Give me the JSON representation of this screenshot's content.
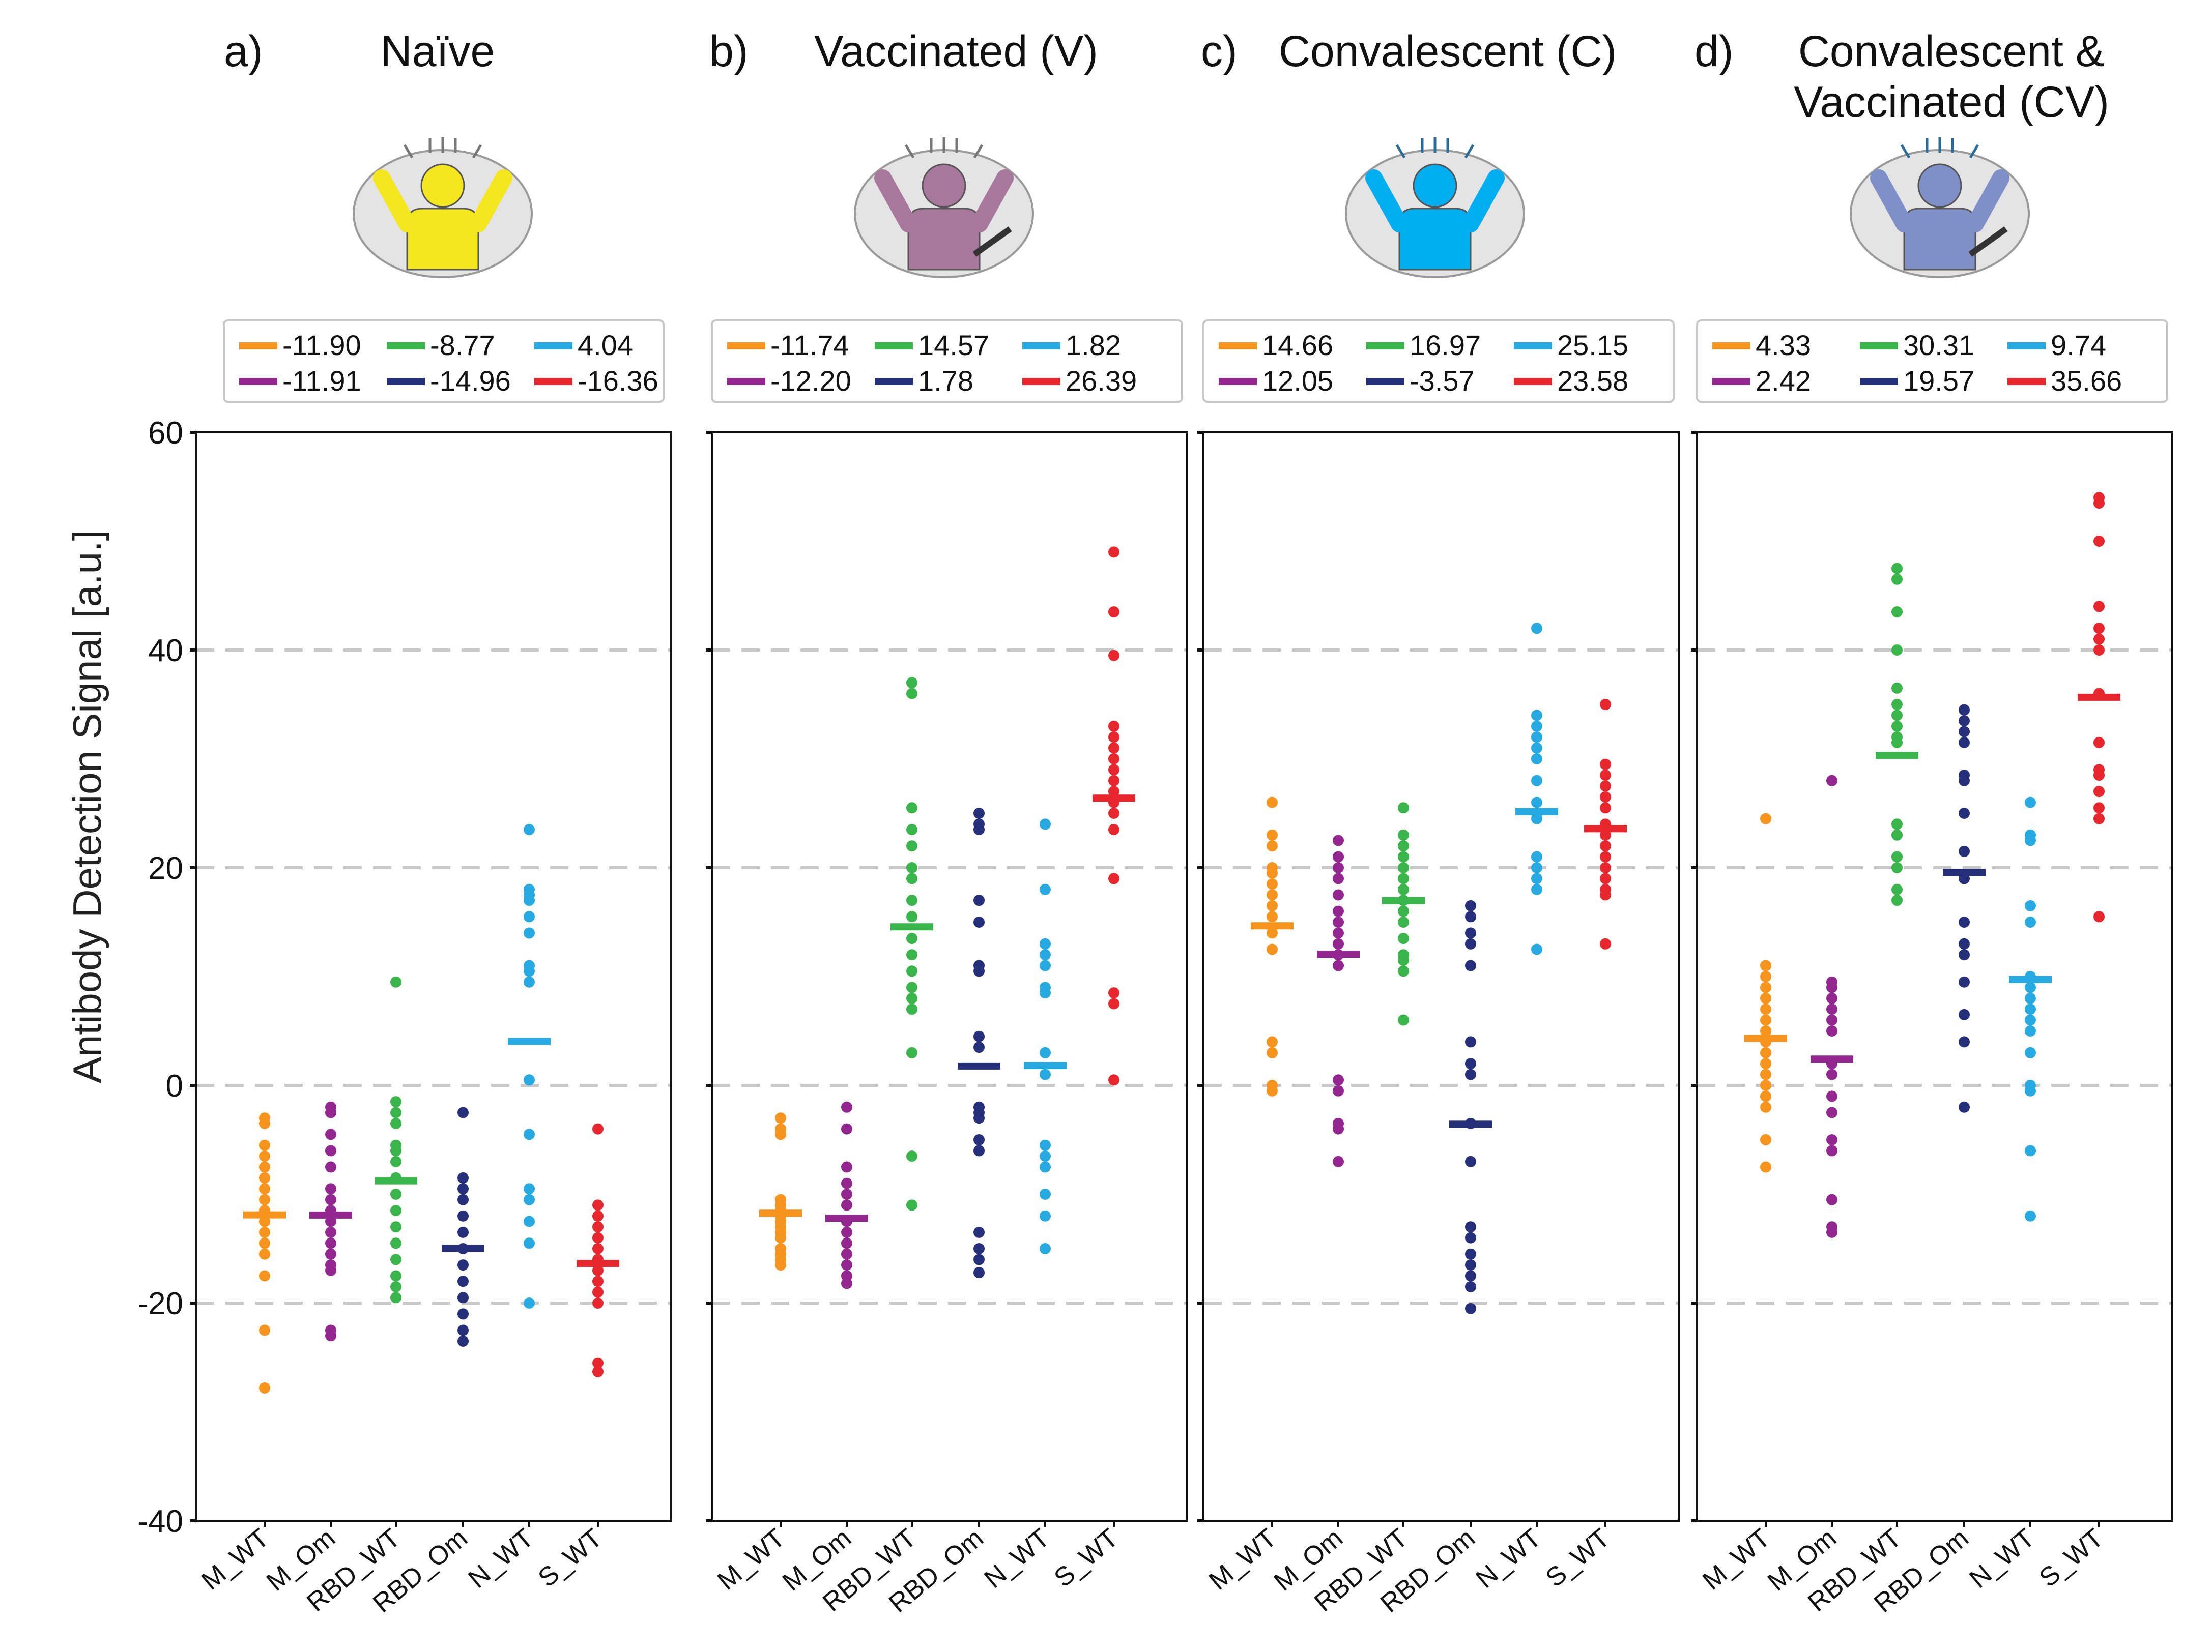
{
  "figure": {
    "ylabel": "Antibody Detection Signal [a.u.]"
  },
  "series_colors": {
    "M_WT": "#f7941d",
    "M_Om": "#92278f",
    "RBD_WT": "#39b54a",
    "RBD_Om": "#262f7a",
    "N_WT": "#27aae1",
    "S_WT": "#e8262d"
  },
  "icons": [
    {
      "panel": "a",
      "name": "raised-arms-person-icon",
      "body_color": "#f5e71e"
    },
    {
      "panel": "b",
      "name": "vaccinated-person-icon",
      "body_color": "#a8779c"
    },
    {
      "panel": "c",
      "name": "sick-person-icon",
      "body_color": "#00aeef"
    },
    {
      "panel": "d",
      "name": "sick-vaccinated-person-icon",
      "body_color": "#7f90c8"
    }
  ],
  "chart_data": [
    {
      "panel_letter": "a)",
      "title_lines": [
        "Naïve"
      ],
      "type": "scatter",
      "categories": [
        "M_WT",
        "M_Om",
        "RBD_WT",
        "RBD_Om",
        "N_WT",
        "S_WT"
      ],
      "ylim": [
        -40,
        60
      ],
      "yticks": [
        -40,
        -20,
        0,
        20,
        40,
        60
      ],
      "grid": "dashed at -20, 0, 20, 40",
      "legend": {
        "placement": "top",
        "labels": [
          "-11.90",
          "-8.77",
          "4.04",
          "-11.91",
          "-14.96",
          "-16.36"
        ]
      },
      "means": [
        -11.9,
        -11.91,
        -8.77,
        -14.96,
        4.04,
        -16.36
      ],
      "points": [
        [
          -3,
          -3.5,
          -5.5,
          -6.5,
          -7.5,
          -8.5,
          -9.5,
          -10.5,
          -11.5,
          -12.5,
          -13.5,
          -14.5,
          -15.5,
          -17.5,
          -22.5,
          -27.8
        ],
        [
          -2,
          -2.5,
          -4.5,
          -6,
          -7.5,
          -9.5,
          -10.5,
          -11.5,
          -12.5,
          -13.5,
          -14.5,
          -15.5,
          -16.5,
          -17,
          -22.5,
          -23
        ],
        [
          9.5,
          -1.5,
          -2.5,
          -3.5,
          -5.5,
          -6,
          -7,
          -8.5,
          -10,
          -11.5,
          -13,
          -14.5,
          -16,
          -17.5,
          -18.5,
          -19.5
        ],
        [
          -2.5,
          -8.5,
          -9.5,
          -10.5,
          -12,
          -13.5,
          -15,
          -16.5,
          -18,
          -19.5,
          -21,
          -22.5,
          -23.5
        ],
        [
          23.5,
          18,
          17.5,
          17,
          15.5,
          14,
          11,
          10.5,
          9.5,
          0.5,
          -4.5,
          -9.5,
          -10.5,
          -12.5,
          -14.5,
          -20
        ],
        [
          -4,
          -11,
          -12,
          -13,
          -14,
          -15,
          -16,
          -17,
          -18,
          -19,
          -20,
          -25.5,
          -26.3
        ]
      ]
    },
    {
      "panel_letter": "b)",
      "title_lines": [
        "Vaccinated (V)"
      ],
      "type": "scatter",
      "categories": [
        "M_WT",
        "M_Om",
        "RBD_WT",
        "RBD_Om",
        "N_WT",
        "S_WT"
      ],
      "ylim": [
        -40,
        60
      ],
      "yticks": [
        -40,
        -20,
        0,
        20,
        40,
        60
      ],
      "grid": "dashed at -20, 0, 20, 40",
      "legend": {
        "placement": "top",
        "labels": [
          "-11.74",
          "14.57",
          "1.82",
          "-12.20",
          "1.78",
          "26.39"
        ]
      },
      "means": [
        -11.74,
        -12.2,
        14.57,
        1.78,
        1.82,
        26.39
      ],
      "points": [
        [
          -3,
          -4,
          -4.5,
          -10.5,
          -11,
          -11.5,
          -12,
          -12.5,
          -13,
          -13.5,
          -14,
          -15,
          -15.5,
          -16,
          -16.5
        ],
        [
          -2,
          -4,
          -7.5,
          -9,
          -10,
          -11,
          -12.5,
          -13.5,
          -14.5,
          -15.5,
          -16.5,
          -17.5,
          -18.2
        ],
        [
          37,
          36,
          25.5,
          23.5,
          22,
          20,
          19,
          17,
          15.5,
          13.5,
          12,
          10.5,
          9,
          8,
          7,
          3,
          -6.5,
          -11
        ],
        [
          25,
          24,
          23.5,
          17,
          15,
          11,
          10.5,
          4.5,
          3.5,
          -2,
          -2.5,
          -3,
          -5,
          -6,
          -13.5,
          -15,
          -16,
          -17.2
        ],
        [
          24,
          18,
          13,
          12,
          11,
          9,
          8.5,
          3,
          1,
          -5.5,
          -6.5,
          -7.5,
          -10,
          -12,
          -15
        ],
        [
          49,
          43.5,
          39.5,
          33,
          32,
          31,
          30,
          29,
          28,
          27,
          26,
          25,
          23.5,
          19,
          8.5,
          7.5,
          0.5
        ]
      ]
    },
    {
      "panel_letter": "c)",
      "title_lines": [
        "Convalescent (C)"
      ],
      "type": "scatter",
      "categories": [
        "M_WT",
        "M_Om",
        "RBD_WT",
        "RBD_Om",
        "N_WT",
        "S_WT"
      ],
      "ylim": [
        -40,
        60
      ],
      "yticks": [
        -40,
        -20,
        0,
        20,
        40,
        60
      ],
      "grid": "dashed at -20, 0, 20, 40",
      "legend": {
        "placement": "top",
        "labels": [
          "14.66",
          "16.97",
          "25.15",
          "12.05",
          "-3.57",
          "23.58"
        ]
      },
      "means": [
        14.66,
        12.05,
        16.97,
        -3.57,
        25.15,
        23.58
      ],
      "points": [
        [
          26,
          23,
          22,
          20,
          19.5,
          18.5,
          17.5,
          16.5,
          15.5,
          14,
          12.5,
          4,
          3,
          0,
          -0.5
        ],
        [
          22.5,
          21,
          20,
          19,
          17.5,
          16,
          15,
          14,
          13,
          12,
          11,
          0.5,
          -0.5,
          -3.5,
          -4,
          -7
        ],
        [
          25.5,
          23,
          22,
          21,
          20,
          19,
          18,
          17,
          16,
          15,
          13.5,
          12,
          11.5,
          10.5,
          6
        ],
        [
          16.5,
          15.5,
          14,
          13,
          11,
          4,
          2,
          1,
          -3.5,
          -7,
          -13,
          -14,
          -15.5,
          -16.5,
          -17.5,
          -18.5,
          -20.5
        ],
        [
          42,
          34,
          33,
          32,
          31,
          30,
          28,
          26,
          25,
          24.5,
          21,
          20,
          19,
          18,
          12.5
        ],
        [
          35,
          29.5,
          28.5,
          27.5,
          26.5,
          25.5,
          24,
          23,
          22,
          21,
          20,
          19,
          18,
          17.5,
          13
        ]
      ]
    },
    {
      "panel_letter": "d)",
      "title_lines": [
        "Convalescent &",
        "Vaccinated (CV)"
      ],
      "type": "scatter",
      "categories": [
        "M_WT",
        "M_Om",
        "RBD_WT",
        "RBD_Om",
        "N_WT",
        "S_WT"
      ],
      "ylim": [
        -40,
        60
      ],
      "yticks": [
        -40,
        -20,
        0,
        20,
        40,
        60
      ],
      "grid": "dashed at -20, 0, 20, 40",
      "legend": {
        "placement": "top",
        "labels": [
          "4.33",
          "30.31",
          "9.74",
          "2.42",
          "19.57",
          "35.66"
        ]
      },
      "means": [
        4.33,
        2.42,
        30.31,
        19.57,
        9.74,
        35.66
      ],
      "points": [
        [
          24.5,
          11,
          10,
          9,
          8,
          7,
          6,
          5,
          4,
          3,
          2,
          1,
          0,
          -1,
          -2,
          -5,
          -7.5
        ],
        [
          28,
          9.5,
          9,
          8,
          7,
          6,
          5,
          2,
          1,
          -1,
          -2.5,
          -5,
          -6,
          -10.5,
          -13,
          -13.5
        ],
        [
          47.5,
          46.5,
          43.5,
          40,
          36.5,
          35,
          34,
          33,
          32,
          31.5,
          24,
          23,
          21,
          20,
          18,
          17
        ],
        [
          34.5,
          33.5,
          32.5,
          31.5,
          28.5,
          28,
          25,
          21.5,
          19,
          15,
          13,
          12,
          9.5,
          6.5,
          4,
          -2
        ],
        [
          26,
          23,
          22.5,
          16.5,
          15,
          10,
          9,
          8,
          7,
          6,
          5,
          3,
          0,
          -0.5,
          -6,
          -12
        ],
        [
          54,
          53.5,
          50,
          44,
          42,
          41,
          40,
          36,
          31.5,
          29,
          28.5,
          27,
          25.5,
          24.5,
          15.5
        ]
      ]
    }
  ]
}
